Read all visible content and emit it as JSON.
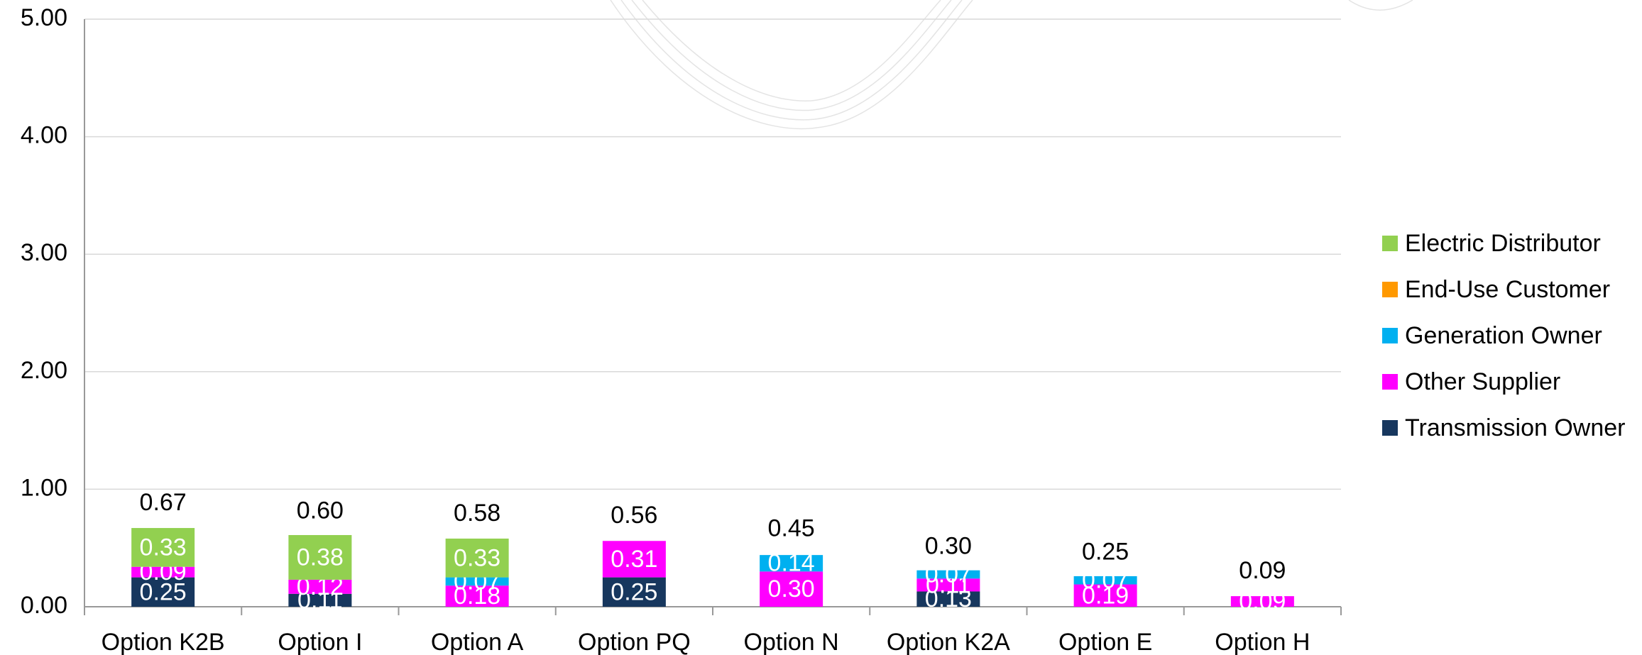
{
  "chart_data": {
    "type": "stacked_bar",
    "categories": [
      "Option K2B",
      "Option I",
      "Option A",
      "Option PQ",
      "Option N",
      "Option K2A",
      "Option E",
      "Option H"
    ],
    "series": [
      {
        "name": "Transmission Owner",
        "color": "#17375e",
        "values": [
          0.25,
          0.11,
          null,
          0.25,
          null,
          0.13,
          null,
          null
        ],
        "value_labels": [
          "0.25",
          "0.11",
          null,
          "0.25",
          null,
          "0.13",
          null,
          null
        ]
      },
      {
        "name": "Other Supplier",
        "color": "#ff00ff",
        "values": [
          0.09,
          0.12,
          0.18,
          0.31,
          0.3,
          0.11,
          0.19,
          0.09
        ],
        "value_labels": [
          "0.09",
          "0.12",
          "0.18",
          "0.31",
          "0.30",
          "0.11",
          "0.19",
          "0.09"
        ]
      },
      {
        "name": "Generation Owner",
        "color": "#00b0f0",
        "values": [
          null,
          null,
          0.07,
          null,
          0.14,
          0.07,
          0.07,
          null
        ],
        "value_labels": [
          null,
          null,
          "0.07",
          null,
          "0.14",
          "0.07",
          "0.07",
          null
        ]
      },
      {
        "name": "End-Use Customer",
        "color": "#ff9900",
        "values": [
          null,
          null,
          null,
          null,
          null,
          null,
          null,
          null
        ],
        "value_labels": [
          null,
          null,
          null,
          null,
          null,
          null,
          null,
          null
        ]
      },
      {
        "name": "Electric Distributor",
        "color": "#92d050",
        "values": [
          0.33,
          0.38,
          0.33,
          null,
          null,
          null,
          null,
          null
        ],
        "value_labels": [
          "0.33",
          "0.38",
          "0.33",
          null,
          null,
          null,
          null,
          null
        ]
      }
    ],
    "totals": {
      "values": [
        0.67,
        0.6,
        0.58,
        0.56,
        0.45,
        0.3,
        0.25,
        0.09
      ],
      "value_labels": [
        "0.67",
        "0.60",
        "0.58",
        "0.56",
        "0.45",
        "0.30",
        "0.25",
        "0.09"
      ]
    },
    "ylim": [
      0,
      5
    ],
    "yticks": [
      {
        "value": 0,
        "label": "0.00"
      },
      {
        "value": 1,
        "label": "1.00"
      },
      {
        "value": 2,
        "label": "2.00"
      },
      {
        "value": 3,
        "label": "3.00"
      },
      {
        "value": 4,
        "label": "4.00"
      },
      {
        "value": 5,
        "label": "5.00"
      }
    ],
    "grid": true,
    "legend": "right"
  }
}
